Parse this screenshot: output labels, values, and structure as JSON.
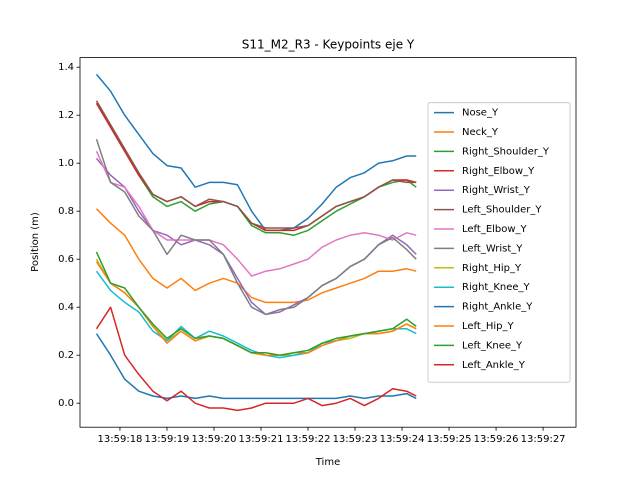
{
  "chart_data": {
    "type": "line",
    "title": "S11_M2_R3 - Keypoints eje Y",
    "xlabel": "Time",
    "ylabel": "Position (m)",
    "x": [
      17.5,
      17.8,
      18.1,
      18.4,
      18.7,
      19.0,
      19.3,
      19.6,
      19.9,
      20.2,
      20.5,
      20.8,
      21.1,
      21.4,
      21.7,
      22.0,
      22.3,
      22.6,
      22.9,
      23.2,
      23.5,
      23.8,
      24.1,
      24.3
    ],
    "xlim": [
      17.15,
      27.7
    ],
    "xticks": [
      {
        "value": 18,
        "label": "13:59:18"
      },
      {
        "value": 19,
        "label": "13:59:19"
      },
      {
        "value": 20,
        "label": "13:59:20"
      },
      {
        "value": 21,
        "label": "13:59:21"
      },
      {
        "value": 22,
        "label": "13:59:22"
      },
      {
        "value": 23,
        "label": "13:59:23"
      },
      {
        "value": 24,
        "label": "13:59:24"
      },
      {
        "value": 25,
        "label": "13:59:25"
      },
      {
        "value": 26,
        "label": "13:59:26"
      },
      {
        "value": 27,
        "label": "13:59:27"
      }
    ],
    "ylim": [
      -0.1,
      1.44
    ],
    "yticks": [
      {
        "value": 0,
        "label": "0.0"
      },
      0.2,
      0.4,
      0.6,
      0.8,
      {
        "value": 1,
        "label": "1.0"
      },
      1.2,
      1.4
    ],
    "legend": "center right",
    "series": [
      {
        "name": "Nose_Y",
        "color": "#1f77b4",
        "values": [
          1.37,
          1.3,
          1.2,
          1.12,
          1.04,
          0.99,
          0.98,
          0.9,
          0.92,
          0.92,
          0.91,
          0.8,
          0.72,
          0.72,
          0.73,
          0.77,
          0.83,
          0.9,
          0.94,
          0.96,
          1.0,
          1.01,
          1.03,
          1.03
        ]
      },
      {
        "name": "Neck_Y",
        "color": "#ff7f0e",
        "values": [
          0.81,
          0.75,
          0.7,
          0.6,
          0.52,
          0.48,
          0.52,
          0.47,
          0.5,
          0.52,
          0.5,
          0.44,
          0.42,
          0.42,
          0.42,
          0.43,
          0.46,
          0.48,
          0.5,
          0.52,
          0.55,
          0.55,
          0.56,
          0.55
        ]
      },
      {
        "name": "Right_Shoulder_Y",
        "color": "#2ca02c",
        "values": [
          1.25,
          1.15,
          1.05,
          0.95,
          0.86,
          0.82,
          0.84,
          0.8,
          0.83,
          0.84,
          0.82,
          0.74,
          0.71,
          0.71,
          0.7,
          0.72,
          0.76,
          0.8,
          0.83,
          0.86,
          0.9,
          0.92,
          0.93,
          0.9
        ]
      },
      {
        "name": "Right_Elbow_Y",
        "color": "#d62728",
        "values": [
          1.25,
          1.15,
          1.05,
          0.95,
          0.87,
          0.84,
          0.86,
          0.82,
          0.84,
          0.84,
          0.82,
          0.75,
          0.72,
          0.72,
          0.72,
          0.74,
          0.78,
          0.82,
          0.84,
          0.86,
          0.9,
          0.93,
          0.93,
          0.92
        ]
      },
      {
        "name": "Right_Wrist_Y",
        "color": "#9467bd",
        "values": [
          1.02,
          0.95,
          0.9,
          0.8,
          0.72,
          0.7,
          0.66,
          0.68,
          0.66,
          0.62,
          0.52,
          0.42,
          0.37,
          0.38,
          0.41,
          0.44,
          0.49,
          0.52,
          0.57,
          0.6,
          0.66,
          0.7,
          0.66,
          0.62
        ]
      },
      {
        "name": "Left_Shoulder_Y",
        "color": "#8c564b",
        "values": [
          1.26,
          1.16,
          1.06,
          0.96,
          0.87,
          0.84,
          0.86,
          0.82,
          0.85,
          0.84,
          0.82,
          0.75,
          0.73,
          0.73,
          0.73,
          0.74,
          0.78,
          0.82,
          0.84,
          0.86,
          0.9,
          0.93,
          0.92,
          0.92
        ]
      },
      {
        "name": "Left_Elbow_Y",
        "color": "#e377c2",
        "values": [
          1.05,
          0.92,
          0.9,
          0.82,
          0.72,
          0.68,
          0.68,
          0.68,
          0.68,
          0.66,
          0.6,
          0.53,
          0.55,
          0.56,
          0.58,
          0.6,
          0.65,
          0.68,
          0.7,
          0.71,
          0.7,
          0.68,
          0.71,
          0.7
        ]
      },
      {
        "name": "Left_Wrist_Y",
        "color": "#7f7f7f",
        "values": [
          1.1,
          0.92,
          0.88,
          0.78,
          0.72,
          0.62,
          0.7,
          0.68,
          0.68,
          0.62,
          0.5,
          0.4,
          0.37,
          0.39,
          0.4,
          0.44,
          0.49,
          0.52,
          0.57,
          0.6,
          0.66,
          0.69,
          0.64,
          0.6
        ]
      },
      {
        "name": "Right_Hip_Y",
        "color": "#bcbd22",
        "values": [
          0.6,
          0.5,
          0.46,
          0.4,
          0.32,
          0.26,
          0.3,
          0.26,
          0.28,
          0.27,
          0.24,
          0.21,
          0.2,
          0.2,
          0.2,
          0.21,
          0.24,
          0.26,
          0.27,
          0.29,
          0.29,
          0.3,
          0.33,
          0.31
        ]
      },
      {
        "name": "Right_Knee_Y",
        "color": "#17becf",
        "values": [
          0.55,
          0.47,
          0.42,
          0.38,
          0.3,
          0.26,
          0.32,
          0.27,
          0.3,
          0.28,
          0.25,
          0.22,
          0.2,
          0.19,
          0.2,
          0.21,
          0.25,
          0.26,
          0.28,
          0.29,
          0.3,
          0.31,
          0.31,
          0.29
        ]
      },
      {
        "name": "Right_Ankle_Y",
        "color": "#1f77b4",
        "values": [
          0.29,
          0.2,
          0.1,
          0.05,
          0.03,
          0.02,
          0.03,
          0.02,
          0.03,
          0.02,
          0.02,
          0.02,
          0.02,
          0.02,
          0.02,
          0.02,
          0.02,
          0.02,
          0.03,
          0.02,
          0.03,
          0.03,
          0.04,
          0.02
        ]
      },
      {
        "name": "Left_Hip_Y",
        "color": "#ff7f0e",
        "values": [
          0.59,
          0.5,
          0.46,
          0.4,
          0.32,
          0.25,
          0.3,
          0.26,
          0.28,
          0.27,
          0.24,
          0.21,
          0.2,
          0.2,
          0.21,
          0.21,
          0.24,
          0.26,
          0.28,
          0.29,
          0.29,
          0.3,
          0.33,
          0.31
        ]
      },
      {
        "name": "Left_Knee_Y",
        "color": "#2ca02c",
        "values": [
          0.63,
          0.5,
          0.48,
          0.4,
          0.33,
          0.27,
          0.31,
          0.27,
          0.28,
          0.27,
          0.24,
          0.21,
          0.21,
          0.2,
          0.21,
          0.22,
          0.25,
          0.27,
          0.28,
          0.29,
          0.3,
          0.31,
          0.35,
          0.32
        ]
      },
      {
        "name": "Left_Ankle_Y",
        "color": "#d62728",
        "values": [
          0.31,
          0.4,
          0.2,
          0.12,
          0.05,
          0.01,
          0.05,
          0.0,
          -0.02,
          -0.02,
          -0.03,
          -0.02,
          0.0,
          0.0,
          0.0,
          0.02,
          -0.01,
          0.0,
          0.02,
          -0.01,
          0.02,
          0.06,
          0.05,
          0.03
        ]
      }
    ]
  }
}
